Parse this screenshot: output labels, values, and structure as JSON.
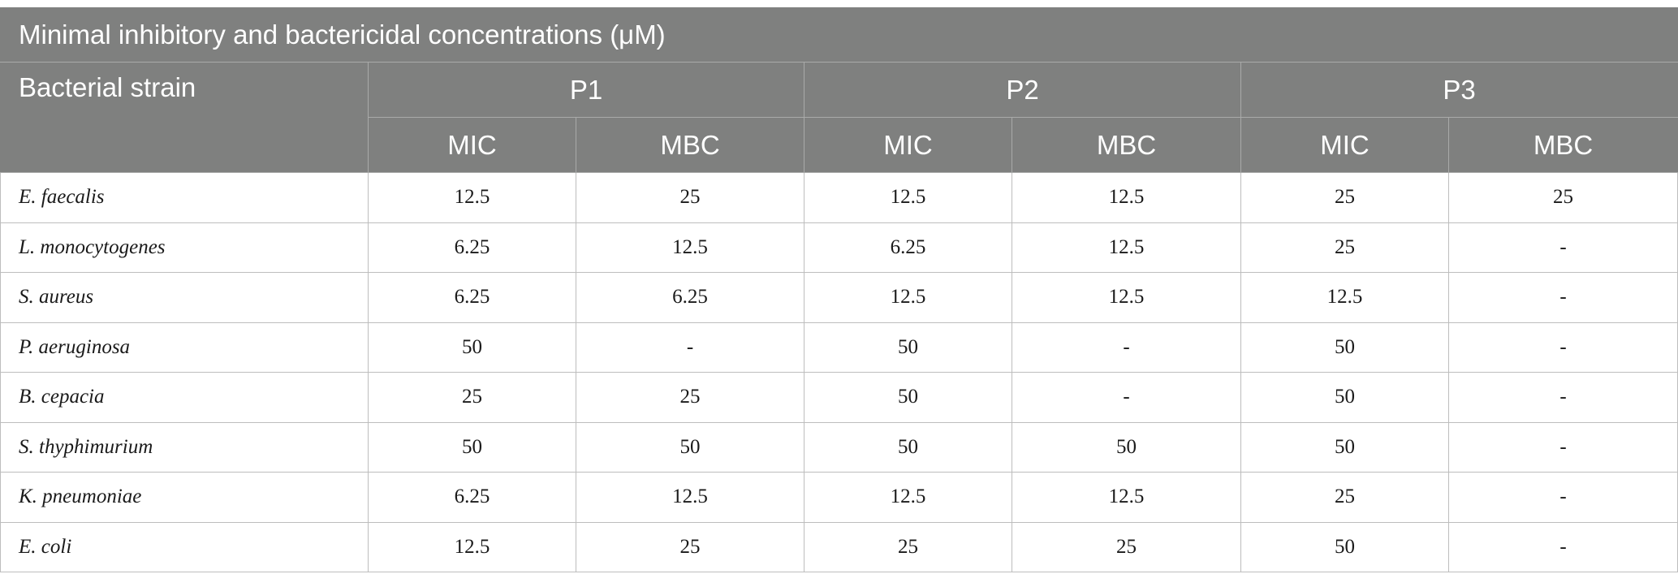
{
  "table": {
    "caption": "Minimal inhibitory and bactericidal concentrations (μM)",
    "strain_header": "Bacterial strain",
    "groups": [
      "P1",
      "P2",
      "P3"
    ],
    "subheaders": [
      "MIC",
      "MBC",
      "MIC",
      "MBC",
      "MIC",
      "MBC"
    ],
    "rows": [
      {
        "strain": "E. faecalis",
        "values": [
          "12.5",
          "25",
          "12.5",
          "12.5",
          "25",
          "25"
        ]
      },
      {
        "strain": "L. monocytogenes",
        "values": [
          "6.25",
          "12.5",
          "6.25",
          "12.5",
          "25",
          "-"
        ]
      },
      {
        "strain": "S. aureus",
        "values": [
          "6.25",
          "6.25",
          "12.5",
          "12.5",
          "12.5",
          "-"
        ]
      },
      {
        "strain": "P. aeruginosa",
        "values": [
          "50",
          "-",
          "50",
          "-",
          "50",
          "-"
        ]
      },
      {
        "strain": "B. cepacia",
        "values": [
          "25",
          "25",
          "50",
          "-",
          "50",
          "-"
        ]
      },
      {
        "strain": "S. thyphimurium",
        "values": [
          "50",
          "50",
          "50",
          "50",
          "50",
          "-"
        ]
      },
      {
        "strain": "K. pneumoniae",
        "values": [
          "6.25",
          "12.5",
          "12.5",
          "12.5",
          "25",
          "-"
        ]
      },
      {
        "strain": "E. coli",
        "values": [
          "12.5",
          "25",
          "25",
          "25",
          "50",
          "-"
        ]
      }
    ]
  }
}
